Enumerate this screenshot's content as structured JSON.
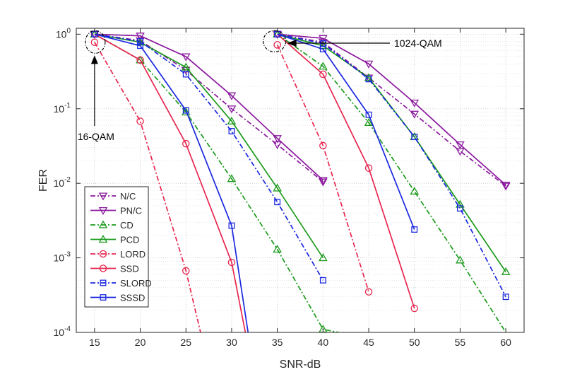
{
  "chart_data": {
    "type": "line",
    "xlabel": "SNR-dB",
    "ylabel": "FER",
    "yscale": "log",
    "xlim": [
      13,
      62
    ],
    "ylim": [
      0.0001,
      1.2
    ],
    "grid": true,
    "legend_position": "bottom-left",
    "x_ticks": [
      15,
      20,
      25,
      30,
      35,
      40,
      45,
      50,
      55,
      60
    ],
    "y_ticks": [
      {
        "value": 1,
        "base": "10",
        "exp": "0"
      },
      {
        "value": 0.1,
        "base": "10",
        "exp": "-1"
      },
      {
        "value": 0.01,
        "base": "10",
        "exp": "-2"
      },
      {
        "value": 0.001,
        "base": "10",
        "exp": "-3"
      },
      {
        "value": 0.0001,
        "base": "10",
        "exp": "-4"
      }
    ],
    "annotations": [
      {
        "text": "16-QAM",
        "target": {
          "x": 15,
          "y": 1.0
        }
      },
      {
        "text": "1024-QAM",
        "target": {
          "x": 35,
          "y": 1.0
        }
      }
    ],
    "series": [
      {
        "name": "N/C",
        "color": "#8B1A9E",
        "dash": "dashdot",
        "marker": "triangle-down",
        "groups": [
          {
            "x": [
              15,
              20,
              25,
              30,
              35,
              40
            ],
            "y": [
              1.0,
              0.82,
              0.33,
              0.1,
              0.033,
              0.0105
            ]
          },
          {
            "x": [
              35,
              40,
              45,
              50,
              55,
              60
            ],
            "y": [
              1.0,
              0.78,
              0.26,
              0.085,
              0.027,
              0.0092
            ]
          }
        ]
      },
      {
        "name": "PN/C",
        "color": "#8B1A9E",
        "dash": "solid",
        "marker": "triangle-down",
        "groups": [
          {
            "x": [
              15,
              20,
              25,
              30,
              35,
              40
            ],
            "y": [
              1.0,
              0.95,
              0.5,
              0.15,
              0.04,
              0.011
            ]
          },
          {
            "x": [
              35,
              40,
              45,
              50,
              55,
              60
            ],
            "y": [
              1.0,
              0.88,
              0.4,
              0.12,
              0.033,
              0.0095
            ]
          }
        ]
      },
      {
        "name": "CD",
        "color": "#1A9A1A",
        "dash": "dashdot",
        "marker": "triangle-up",
        "groups": [
          {
            "x": [
              15,
              20,
              25,
              30,
              35,
              40,
              41.7
            ],
            "y": [
              1.0,
              0.45,
              0.09,
              0.0115,
              0.0013,
              0.00011,
              0.0001
            ]
          },
          {
            "x": [
              35,
              40,
              45,
              50,
              55,
              60
            ],
            "y": [
              1.0,
              0.37,
              0.065,
              0.0078,
              0.00093,
              0.0001
            ]
          }
        ]
      },
      {
        "name": "PCD",
        "color": "#1A9A1A",
        "dash": "solid",
        "marker": "triangle-up",
        "groups": [
          {
            "x": [
              15,
              20,
              25,
              30,
              35,
              40
            ],
            "y": [
              1.0,
              0.78,
              0.36,
              0.068,
              0.0086,
              0.001
            ]
          },
          {
            "x": [
              35,
              40,
              45,
              50,
              55,
              60
            ],
            "y": [
              1.0,
              0.7,
              0.26,
              0.042,
              0.0052,
              0.00065
            ]
          }
        ]
      },
      {
        "name": "LORD",
        "color": "#E8254E",
        "dash": "dashdot",
        "marker": "circle",
        "groups": [
          {
            "x": [
              15,
              20,
              25,
              26.6
            ],
            "y": [
              0.78,
              0.068,
              0.00067,
              0.0001
            ]
          },
          {
            "x": [
              35,
              40,
              45
            ],
            "y": [
              0.72,
              0.032,
              0.00035
            ]
          }
        ]
      },
      {
        "name": "SSD",
        "color": "#E8254E",
        "dash": "solid",
        "marker": "circle",
        "groups": [
          {
            "x": [
              15,
              20,
              25,
              30,
              31.5
            ],
            "y": [
              1.0,
              0.45,
              0.034,
              0.00087,
              0.0001
            ]
          },
          {
            "x": [
              35,
              40,
              45,
              50
            ],
            "y": [
              1.0,
              0.29,
              0.016,
              0.00021
            ]
          }
        ]
      },
      {
        "name": "SLORD",
        "color": "#1A28E0",
        "dash": "dashdot",
        "marker": "square",
        "groups": [
          {
            "x": [
              15,
              20,
              25,
              30,
              35,
              40
            ],
            "y": [
              1.0,
              0.8,
              0.29,
              0.05,
              0.0056,
              0.0005
            ]
          },
          {
            "x": [
              35,
              40,
              45,
              50,
              55,
              60
            ],
            "y": [
              1.0,
              0.75,
              0.25,
              0.042,
              0.0046,
              0.0003
            ]
          }
        ]
      },
      {
        "name": "SSSD",
        "color": "#1A28E0",
        "dash": "solid",
        "marker": "square",
        "groups": [
          {
            "x": [
              15,
              20,
              25,
              30,
              31.8
            ],
            "y": [
              1.0,
              0.7,
              0.095,
              0.0027,
              0.0001
            ]
          },
          {
            "x": [
              35,
              40,
              45,
              50
            ],
            "y": [
              1.0,
              0.63,
              0.083,
              0.0024
            ]
          }
        ]
      }
    ]
  }
}
